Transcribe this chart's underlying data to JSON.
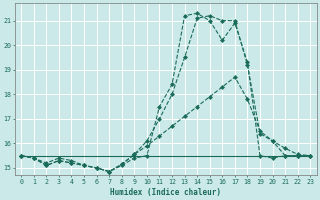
{
  "xlabel": "Humidex (Indice chaleur)",
  "background_color": "#cce9e9",
  "grid_color": "#ffffff",
  "line_color": "#1a6b5a",
  "xlim": [
    -0.5,
    23.5
  ],
  "ylim": [
    14.7,
    21.7
  ],
  "yticks": [
    15,
    16,
    17,
    18,
    19,
    20,
    21
  ],
  "xticks": [
    0,
    1,
    2,
    3,
    4,
    5,
    6,
    7,
    8,
    9,
    10,
    11,
    12,
    13,
    14,
    15,
    16,
    17,
    18,
    19,
    20,
    21,
    22,
    23
  ],
  "series": [
    {
      "x": [
        0,
        1,
        2,
        3,
        4,
        5,
        6,
        7,
        8,
        9,
        10,
        11,
        12,
        13,
        14,
        15,
        16,
        17,
        18,
        19,
        20,
        21,
        22,
        23
      ],
      "y": [
        15.5,
        15.4,
        15.2,
        15.4,
        15.3,
        15.1,
        15.0,
        14.85,
        15.1,
        15.4,
        15.5,
        17.5,
        18.4,
        21.2,
        21.3,
        21.0,
        20.2,
        20.9,
        19.3,
        15.5,
        15.4,
        15.5,
        15.5,
        15.5
      ],
      "style": "dashed",
      "marker": true
    },
    {
      "x": [
        0,
        1,
        2,
        3,
        4,
        5,
        6,
        7,
        8,
        9,
        10,
        11,
        12,
        13,
        14,
        15,
        16,
        17,
        18,
        19,
        20,
        21,
        22,
        23
      ],
      "y": [
        15.5,
        15.4,
        15.1,
        15.3,
        15.2,
        15.1,
        15.0,
        14.85,
        15.15,
        15.55,
        15.9,
        16.3,
        16.7,
        17.1,
        17.5,
        17.9,
        18.3,
        18.7,
        17.8,
        16.5,
        16.1,
        15.8,
        15.55,
        15.5
      ],
      "style": "dashed",
      "marker": true
    },
    {
      "x": [
        0,
        1,
        2,
        3,
        4,
        5,
        6,
        7,
        8,
        9,
        10,
        11,
        12,
        13,
        14,
        15,
        16,
        17,
        18,
        19,
        20,
        21,
        22,
        23
      ],
      "y": [
        15.5,
        15.4,
        15.1,
        15.3,
        15.2,
        15.1,
        15.0,
        14.85,
        15.15,
        15.55,
        16.1,
        17.0,
        18.0,
        19.5,
        21.1,
        21.2,
        21.0,
        21.0,
        19.2,
        16.4,
        16.1,
        15.5,
        15.5,
        15.5
      ],
      "style": "dashed",
      "marker": true
    },
    {
      "x": [
        0,
        1,
        2,
        3,
        4,
        5,
        6,
        7,
        8,
        9,
        10,
        11,
        12,
        13,
        14,
        15,
        16,
        17,
        18,
        19,
        20,
        21,
        22,
        23
      ],
      "y": [
        15.5,
        15.5,
        15.5,
        15.5,
        15.5,
        15.5,
        15.5,
        15.5,
        15.5,
        15.5,
        15.5,
        15.5,
        15.5,
        15.5,
        15.5,
        15.5,
        15.5,
        15.5,
        15.5,
        15.5,
        15.5,
        15.5,
        15.5,
        15.5
      ],
      "style": "solid",
      "marker": false
    }
  ]
}
